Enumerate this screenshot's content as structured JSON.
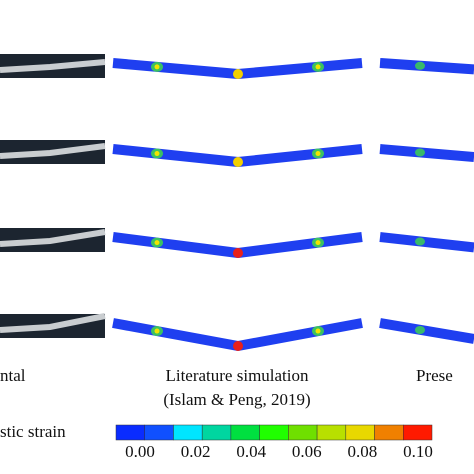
{
  "labels": {
    "experimental": "ntal",
    "literature": "Literature simulation",
    "citation": "(Islam & Peng, 2019)",
    "present": "Prese"
  },
  "colorbar": {
    "label": "stic strain",
    "ticks": [
      "0.00",
      "0.02",
      "0.04",
      "0.06",
      "0.08",
      "0.10"
    ]
  }
}
